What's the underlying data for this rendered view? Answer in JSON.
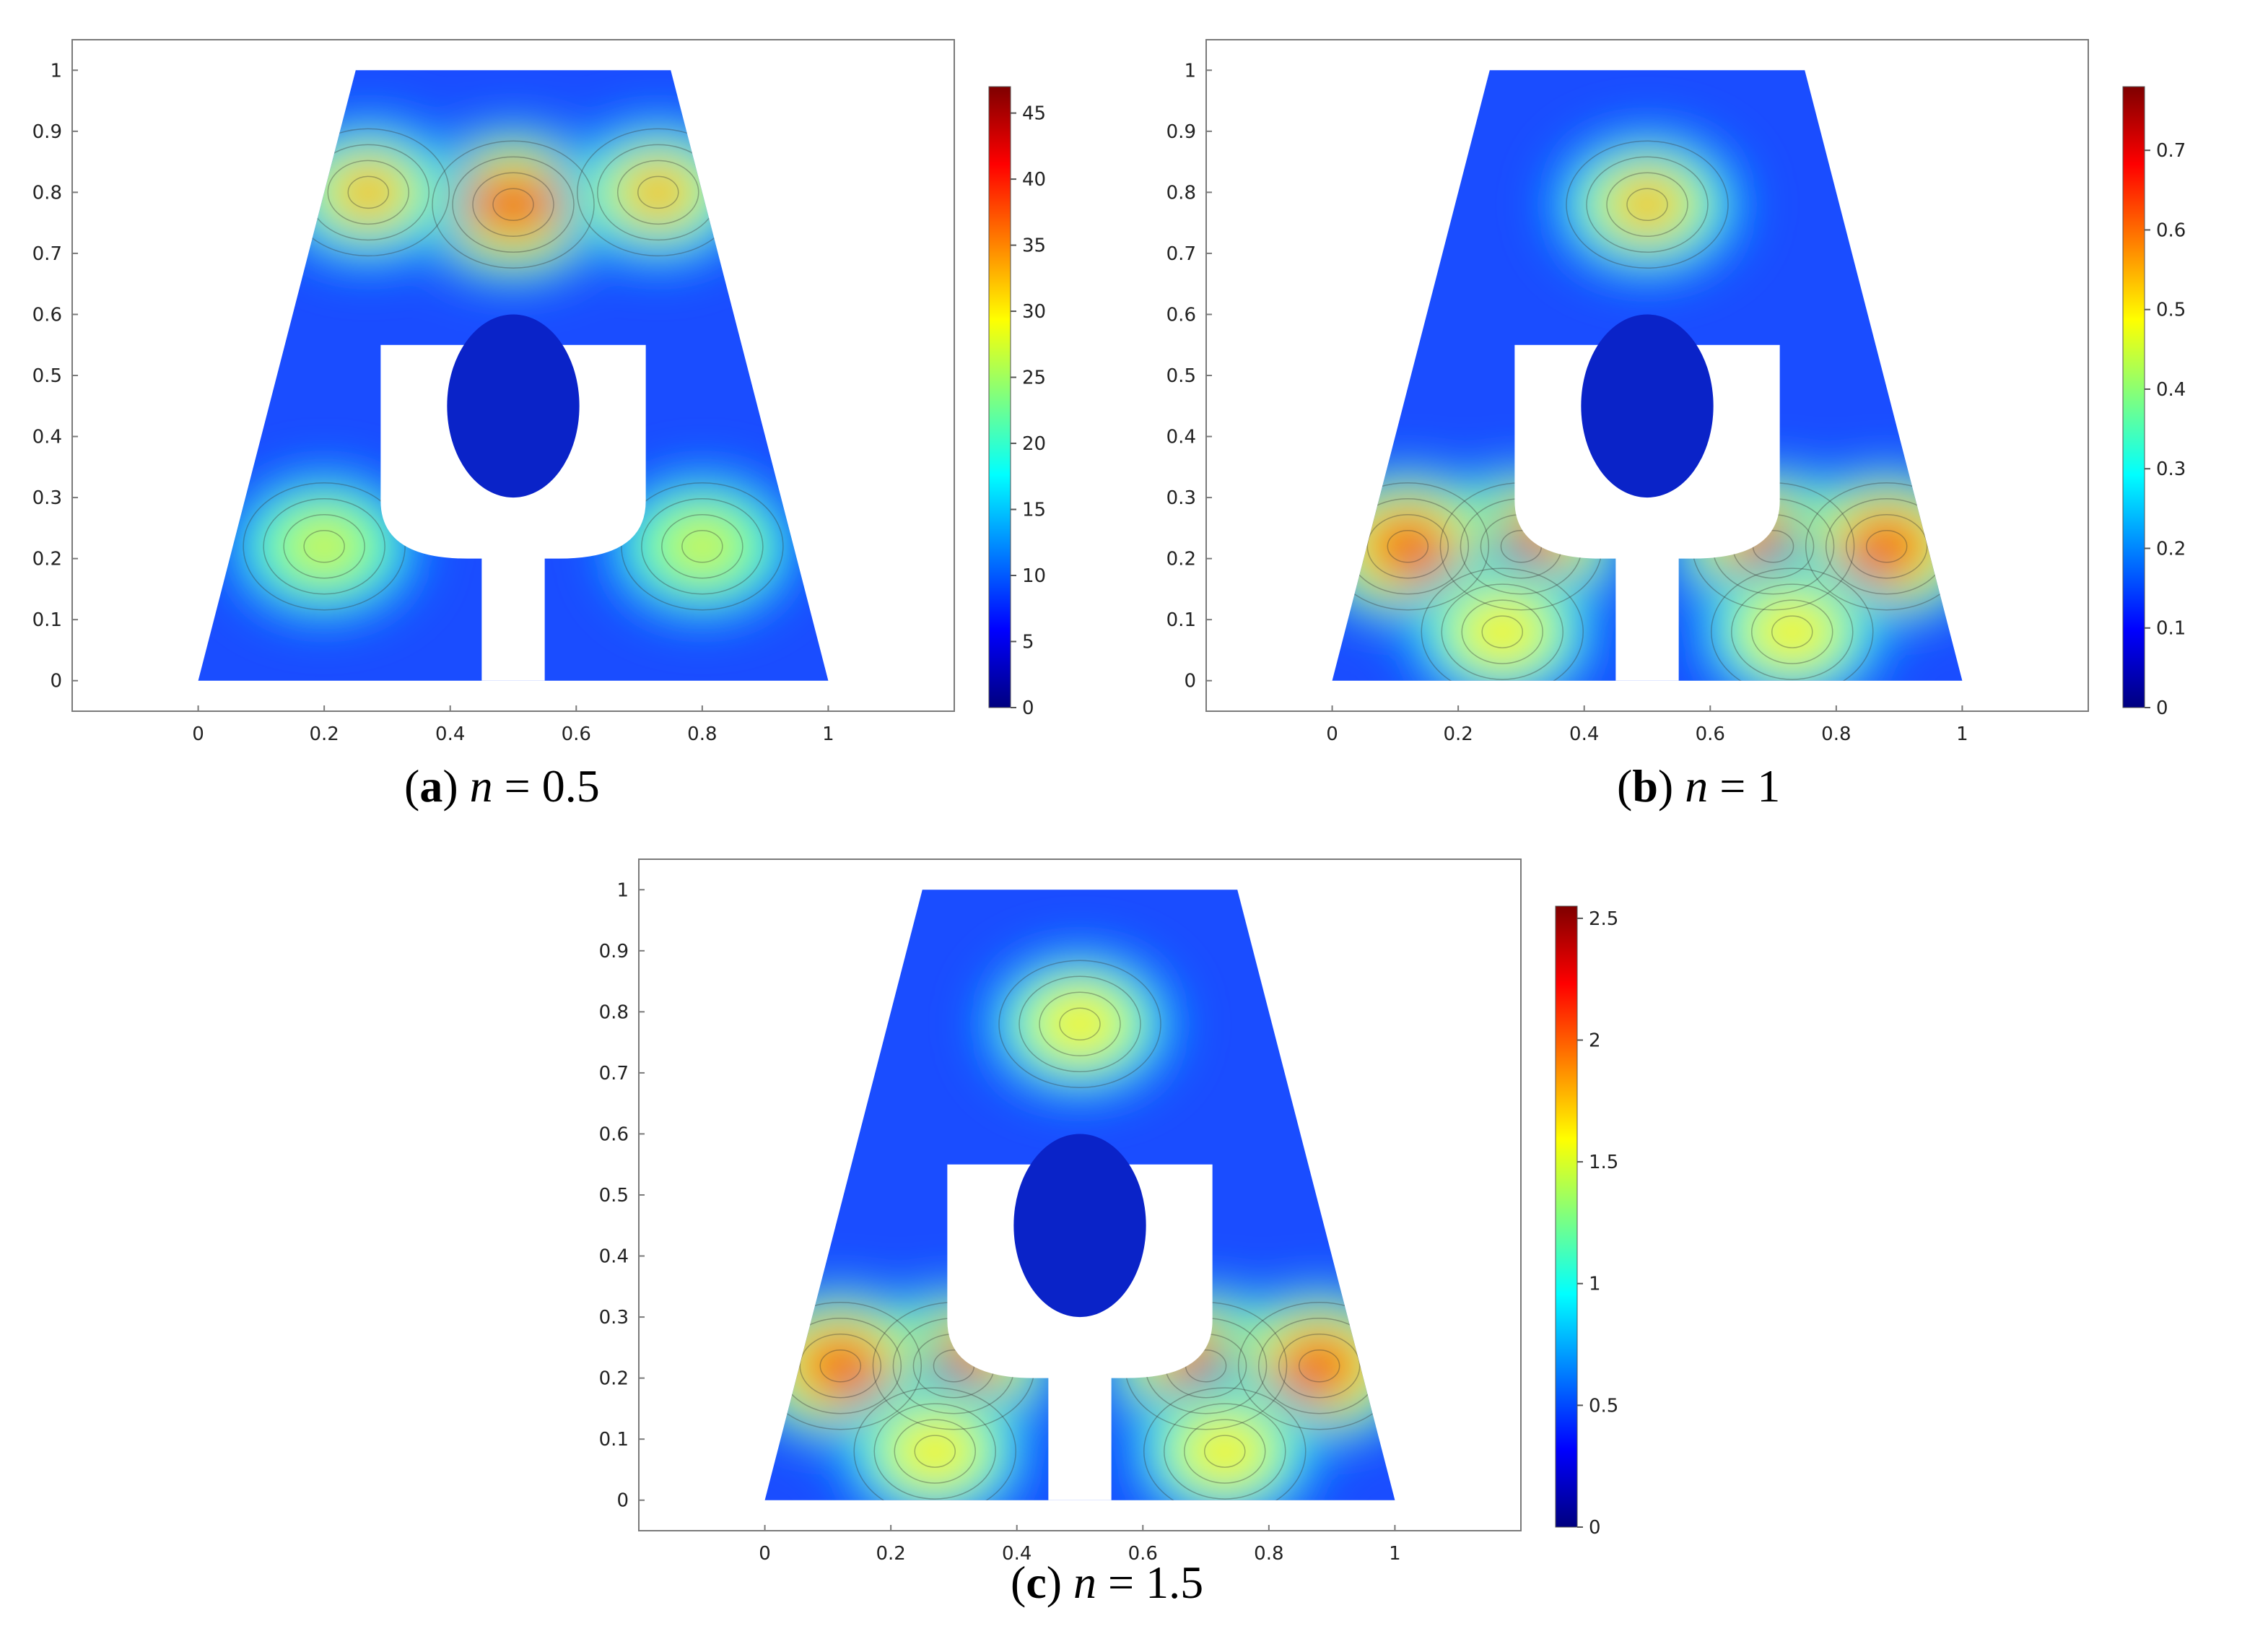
{
  "chart_data": [
    {
      "type": "heatmap",
      "panel_letter": "a",
      "caption_var": "n",
      "caption_value": "0.5",
      "xlim": [
        -0.2,
        1.2
      ],
      "ylim": [
        -0.05,
        1.05
      ],
      "x_ticks": [
        "0",
        "0.2",
        "0.4",
        "0.6",
        "0.8",
        "1"
      ],
      "y_ticks": [
        "0",
        "0.1",
        "0.2",
        "0.3",
        "0.4",
        "0.5",
        "0.6",
        "0.7",
        "0.8",
        "0.9",
        "1"
      ],
      "colorbar_range": [
        0,
        47
      ],
      "colorbar_ticks": [
        "0",
        "5",
        "10",
        "15",
        "20",
        "25",
        "30",
        "35",
        "40",
        "45"
      ],
      "domain_top": [
        0.25,
        0.75
      ],
      "domain_bottom": [
        0,
        1
      ],
      "cutout_top_y": 0.55,
      "stem_x": [
        0.45,
        0.55
      ],
      "stem_top_y": 0.2,
      "ellipse": {
        "cx": 0.5,
        "cy": 0.45,
        "rx": 0.105,
        "ry": 0.15
      },
      "hotspots": [
        {
          "x": 0.5,
          "y": 0.78,
          "level": 47
        },
        {
          "x": 0.27,
          "y": 0.8,
          "level": 40
        },
        {
          "x": 0.73,
          "y": 0.8,
          "level": 40
        },
        {
          "x": 0.2,
          "y": 0.22,
          "level": 33
        },
        {
          "x": 0.8,
          "y": 0.22,
          "level": 33
        }
      ]
    },
    {
      "type": "heatmap",
      "panel_letter": "b",
      "caption_var": "n",
      "caption_value": "1",
      "xlim": [
        -0.2,
        1.2
      ],
      "ylim": [
        -0.05,
        1.05
      ],
      "x_ticks": [
        "0",
        "0.2",
        "0.4",
        "0.6",
        "0.8",
        "1"
      ],
      "y_ticks": [
        "0",
        "0.1",
        "0.2",
        "0.3",
        "0.4",
        "0.5",
        "0.6",
        "0.7",
        "0.8",
        "0.9",
        "1"
      ],
      "colorbar_range": [
        0,
        0.78
      ],
      "colorbar_ticks": [
        "0",
        "0.1",
        "0.2",
        "0.3",
        "0.4",
        "0.5",
        "0.6",
        "0.7"
      ],
      "domain_top": [
        0.25,
        0.75
      ],
      "domain_bottom": [
        0,
        1
      ],
      "cutout_top_y": 0.55,
      "stem_x": [
        0.45,
        0.55
      ],
      "stem_top_y": 0.2,
      "ellipse": {
        "cx": 0.5,
        "cy": 0.45,
        "rx": 0.105,
        "ry": 0.15
      },
      "hotspots": [
        {
          "x": 0.5,
          "y": 0.78,
          "level": 0.62
        },
        {
          "x": 0.3,
          "y": 0.22,
          "level": 0.76
        },
        {
          "x": 0.7,
          "y": 0.22,
          "level": 0.76
        },
        {
          "x": 0.12,
          "y": 0.22,
          "level": 0.74
        },
        {
          "x": 0.88,
          "y": 0.22,
          "level": 0.74
        },
        {
          "x": 0.27,
          "y": 0.08,
          "level": 0.6
        },
        {
          "x": 0.73,
          "y": 0.08,
          "level": 0.6
        }
      ]
    },
    {
      "type": "heatmap",
      "panel_letter": "c",
      "caption_var": "n",
      "caption_value": "1.5",
      "xlim": [
        -0.2,
        1.2
      ],
      "ylim": [
        -0.05,
        1.05
      ],
      "x_ticks": [
        "0",
        "0.2",
        "0.4",
        "0.6",
        "0.8",
        "1"
      ],
      "y_ticks": [
        "0",
        "0.1",
        "0.2",
        "0.3",
        "0.4",
        "0.5",
        "0.6",
        "0.7",
        "0.8",
        "0.9",
        "1"
      ],
      "colorbar_range": [
        0,
        2.55
      ],
      "colorbar_ticks": [
        "0",
        "0.5",
        "1",
        "1.5",
        "2",
        "2.5"
      ],
      "domain_top": [
        0.25,
        0.75
      ],
      "domain_bottom": [
        0,
        1
      ],
      "cutout_top_y": 0.55,
      "stem_x": [
        0.45,
        0.55
      ],
      "stem_top_y": 0.2,
      "ellipse": {
        "cx": 0.5,
        "cy": 0.45,
        "rx": 0.105,
        "ry": 0.15
      },
      "hotspots": [
        {
          "x": 0.5,
          "y": 0.78,
          "level": 1.9
        },
        {
          "x": 0.3,
          "y": 0.22,
          "level": 2.5
        },
        {
          "x": 0.7,
          "y": 0.22,
          "level": 2.5
        },
        {
          "x": 0.12,
          "y": 0.22,
          "level": 2.45
        },
        {
          "x": 0.88,
          "y": 0.22,
          "level": 2.45
        },
        {
          "x": 0.27,
          "y": 0.08,
          "level": 2.0
        },
        {
          "x": 0.73,
          "y": 0.08,
          "level": 2.0
        }
      ]
    }
  ]
}
